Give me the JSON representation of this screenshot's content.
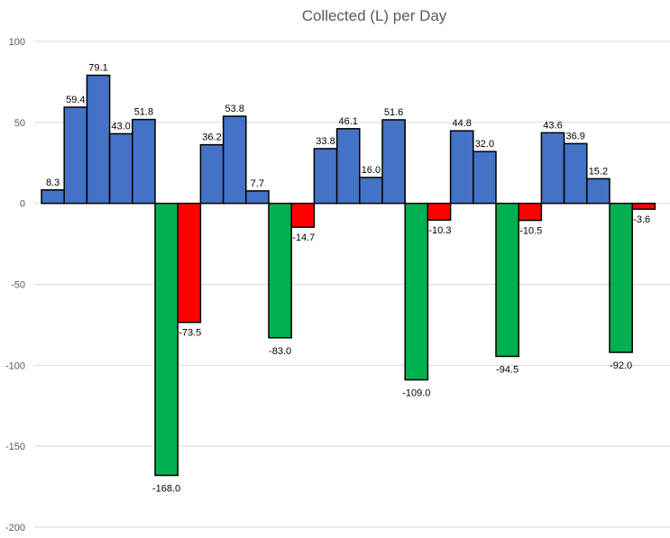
{
  "chart_data": {
    "type": "bar",
    "title": "Collected (L) per Day",
    "xlabel": "",
    "ylabel": "",
    "ylim": [
      -200,
      100
    ],
    "yticks": [
      100,
      50,
      0,
      -50,
      -100,
      -150,
      -200
    ],
    "grid": true,
    "legend": "none",
    "colors": {
      "blue": "#4472c4",
      "green": "#00b050",
      "red": "#ff0000"
    },
    "bars": [
      {
        "value": 8.3,
        "color": "blue",
        "label": "8.3"
      },
      {
        "value": 59.4,
        "color": "blue",
        "label": "59.4"
      },
      {
        "value": 79.1,
        "color": "blue",
        "label": "79.1"
      },
      {
        "value": 43.0,
        "color": "blue",
        "label": "43.0"
      },
      {
        "value": 51.8,
        "color": "blue",
        "label": "51.8"
      },
      {
        "value": -168.0,
        "color": "green",
        "label": "-168.0"
      },
      {
        "value": -73.5,
        "color": "red",
        "label": "-73.5"
      },
      {
        "value": 36.2,
        "color": "blue",
        "label": "36.2"
      },
      {
        "value": 53.8,
        "color": "blue",
        "label": "53.8"
      },
      {
        "value": 7.7,
        "color": "blue",
        "label": "7.7"
      },
      {
        "value": -83.0,
        "color": "green",
        "label": "-83.0"
      },
      {
        "value": -14.7,
        "color": "red",
        "label": "-14.7"
      },
      {
        "value": 33.8,
        "color": "blue",
        "label": "33.8"
      },
      {
        "value": 46.1,
        "color": "blue",
        "label": "46.1"
      },
      {
        "value": 16.0,
        "color": "blue",
        "label": "16.0"
      },
      {
        "value": 51.6,
        "color": "blue",
        "label": "51.6"
      },
      {
        "value": -109.0,
        "color": "green",
        "label": "-109.0"
      },
      {
        "value": -10.3,
        "color": "red",
        "label": "-10.3"
      },
      {
        "value": 44.8,
        "color": "blue",
        "label": "44.8"
      },
      {
        "value": 32.0,
        "color": "blue",
        "label": "32.0"
      },
      {
        "value": -94.5,
        "color": "green",
        "label": "-94.5"
      },
      {
        "value": -10.5,
        "color": "red",
        "label": "-10.5"
      },
      {
        "value": 43.6,
        "color": "blue",
        "label": "43.6"
      },
      {
        "value": 36.9,
        "color": "blue",
        "label": "36.9"
      },
      {
        "value": 15.2,
        "color": "blue",
        "label": "15.2"
      },
      {
        "value": -92.0,
        "color": "green",
        "label": "-92.0"
      },
      {
        "value": -3.6,
        "color": "red",
        "label": "-3.6"
      }
    ]
  }
}
